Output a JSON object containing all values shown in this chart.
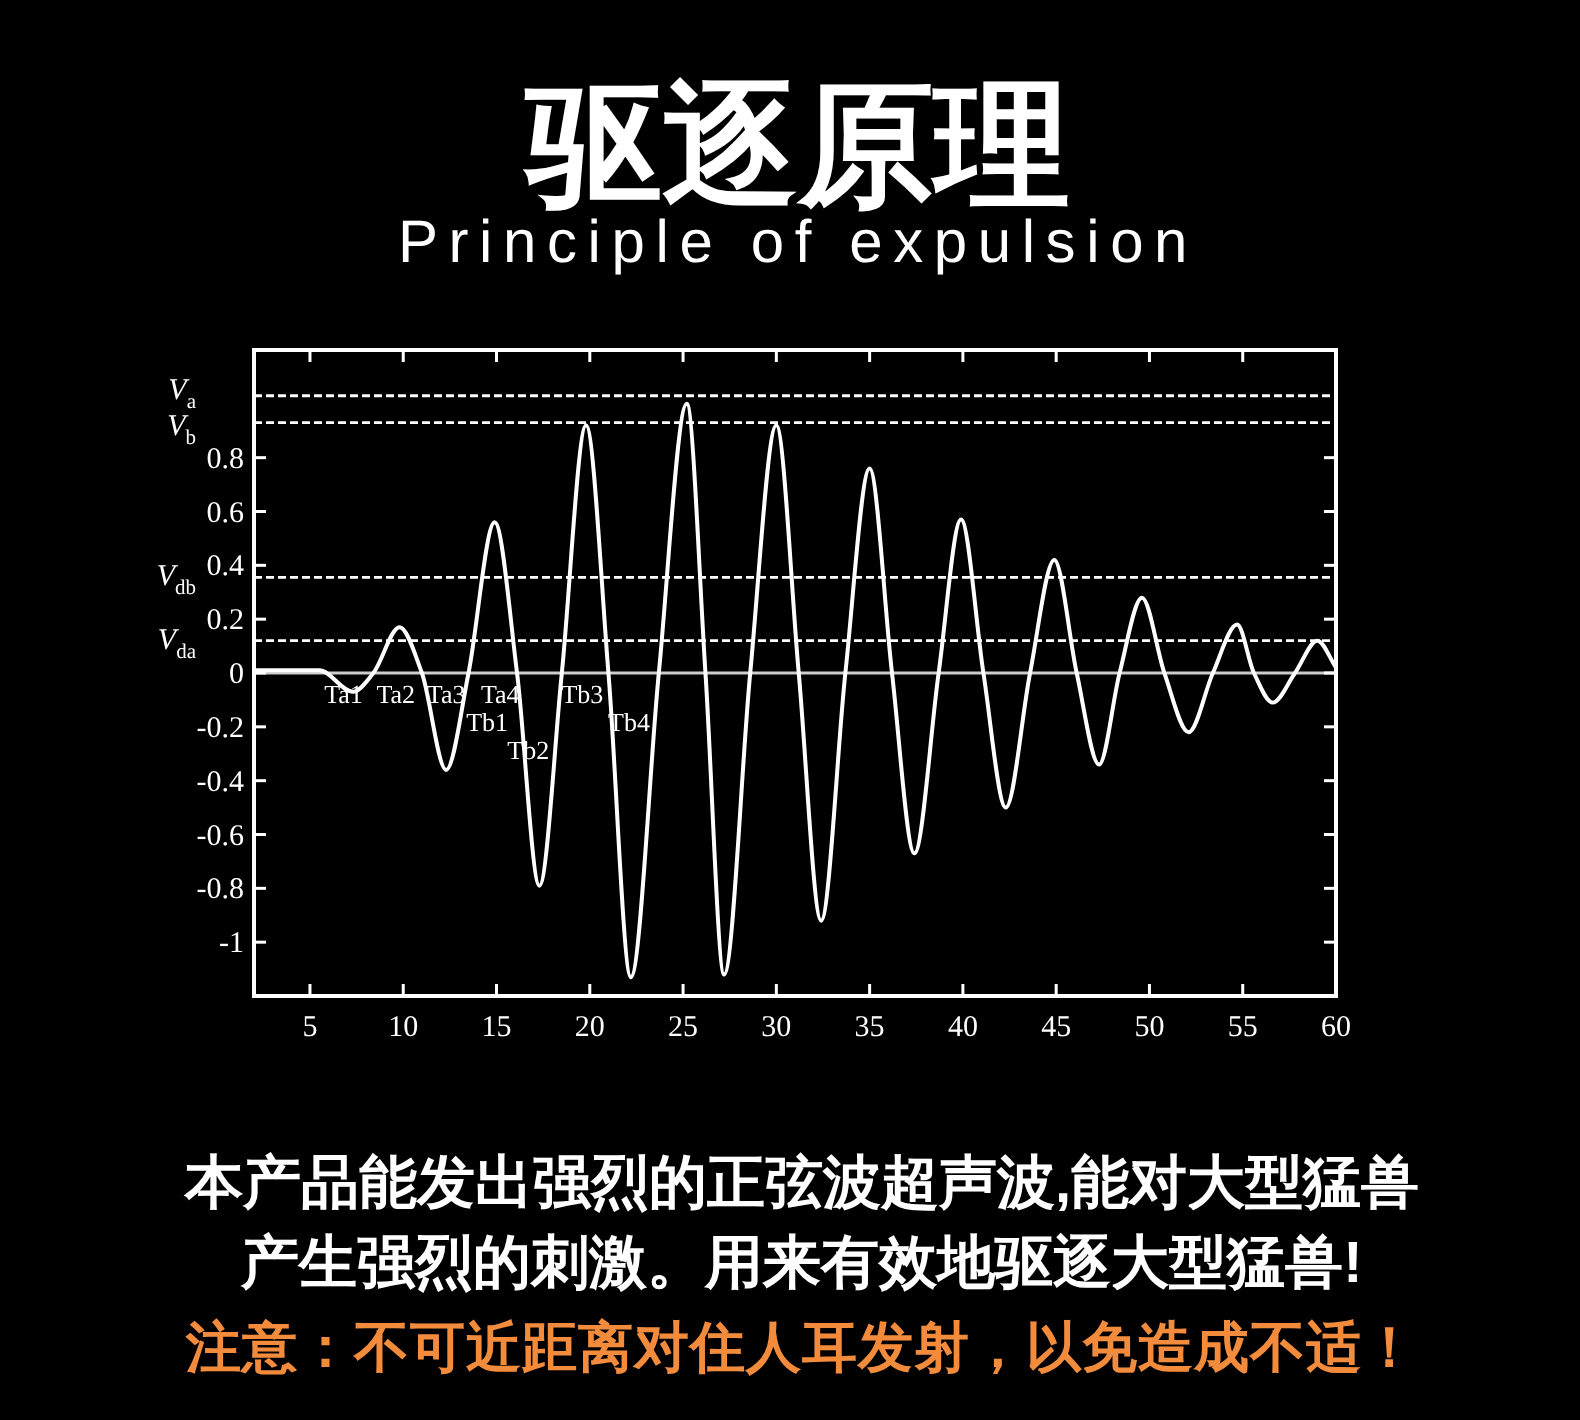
{
  "chart_data": {
    "type": "line",
    "title": "驱逐原理",
    "subtitle": "Principle of expulsion",
    "x": [
      2,
      5.5,
      7.3,
      8.4,
      9.8,
      11,
      12.3,
      13.5,
      14.9,
      16.1,
      17.3,
      18.5,
      19.8,
      21,
      22.2,
      23.7,
      25.2,
      26.2,
      27.2,
      28.6,
      30,
      31.2,
      32.4,
      33.7,
      35,
      36.2,
      37.4,
      38.7,
      39.9,
      41.1,
      42.3,
      43.6,
      44.9,
      46.1,
      47.3,
      48.4,
      49.6,
      50.8,
      52.1,
      53.4,
      54.7,
      55.6,
      56.6,
      57.8,
      59,
      60
    ],
    "series": [
      {
        "color": "#ffffff",
        "values": [
          0.01,
          0.01,
          -0.07,
          0,
          0.17,
          0,
          -0.36,
          0,
          0.56,
          0,
          -0.79,
          0,
          0.92,
          0,
          -1.13,
          0,
          1,
          0,
          -1.12,
          0,
          0.92,
          0,
          -0.92,
          0,
          0.76,
          0,
          -0.67,
          0,
          0.57,
          0,
          -0.5,
          0,
          0.42,
          0,
          -0.34,
          0,
          0.28,
          0,
          -0.22,
          0,
          0.18,
          0,
          -0.11,
          0,
          0.12,
          0.02
        ]
      }
    ],
    "xlim": [
      2,
      60
    ],
    "xticks": [
      5,
      10,
      15,
      20,
      25,
      30,
      35,
      40,
      45,
      50,
      55,
      60
    ],
    "ylim": [
      -1.2,
      1.2
    ],
    "yticks": [
      -1,
      -0.8,
      -0.6,
      -0.4,
      -0.2,
      0,
      0.2,
      0.4,
      0.6,
      0.8
    ],
    "ref_lines": [
      {
        "axis": "y",
        "value": 0,
        "color": "#cccccc",
        "line_style": "solid"
      },
      {
        "axis": "y",
        "value": 1.03,
        "label": "V$_{a}$",
        "color": "#ffffff",
        "line_style": "dashed"
      },
      {
        "axis": "y",
        "value": 0.93,
        "label": "V$_{b}$",
        "color": "#ffffff",
        "line_style": "dashed"
      },
      {
        "axis": "y",
        "value": 0.355,
        "label": "V$_{db}$",
        "color": "#ffffff",
        "line_style": "dashed"
      },
      {
        "axis": "y",
        "value": 0.12,
        "label": "V$_{da}$",
        "color": "#ffffff",
        "line_style": "dashed"
      }
    ],
    "annotations": [
      {
        "text": "Ta1",
        "x": 6.8,
        "y": 0
      },
      {
        "text": "Ta2",
        "x": 9.6,
        "y": 0
      },
      {
        "text": "Ta3",
        "x": 12.3,
        "y": 0
      },
      {
        "text": "Ta4",
        "x": 15.2,
        "y": 0
      },
      {
        "text": "Tb1",
        "x": 14.5,
        "y": 0
      },
      {
        "text": "Tb2",
        "x": 16.7,
        "y": 0
      },
      {
        "text": "Tb3",
        "x": 19.6,
        "y": 0
      },
      {
        "text": "Tb4",
        "x": 22.1,
        "y": 0
      },
      "本产品能发出强烈的正弦波超声波,能对大型猛兽",
      "产生强烈的刺激。用来有效地驱逐大型猛兽!",
      "注意：不可近距离对住人耳发射，以免造成不适！"
    ]
  }
}
